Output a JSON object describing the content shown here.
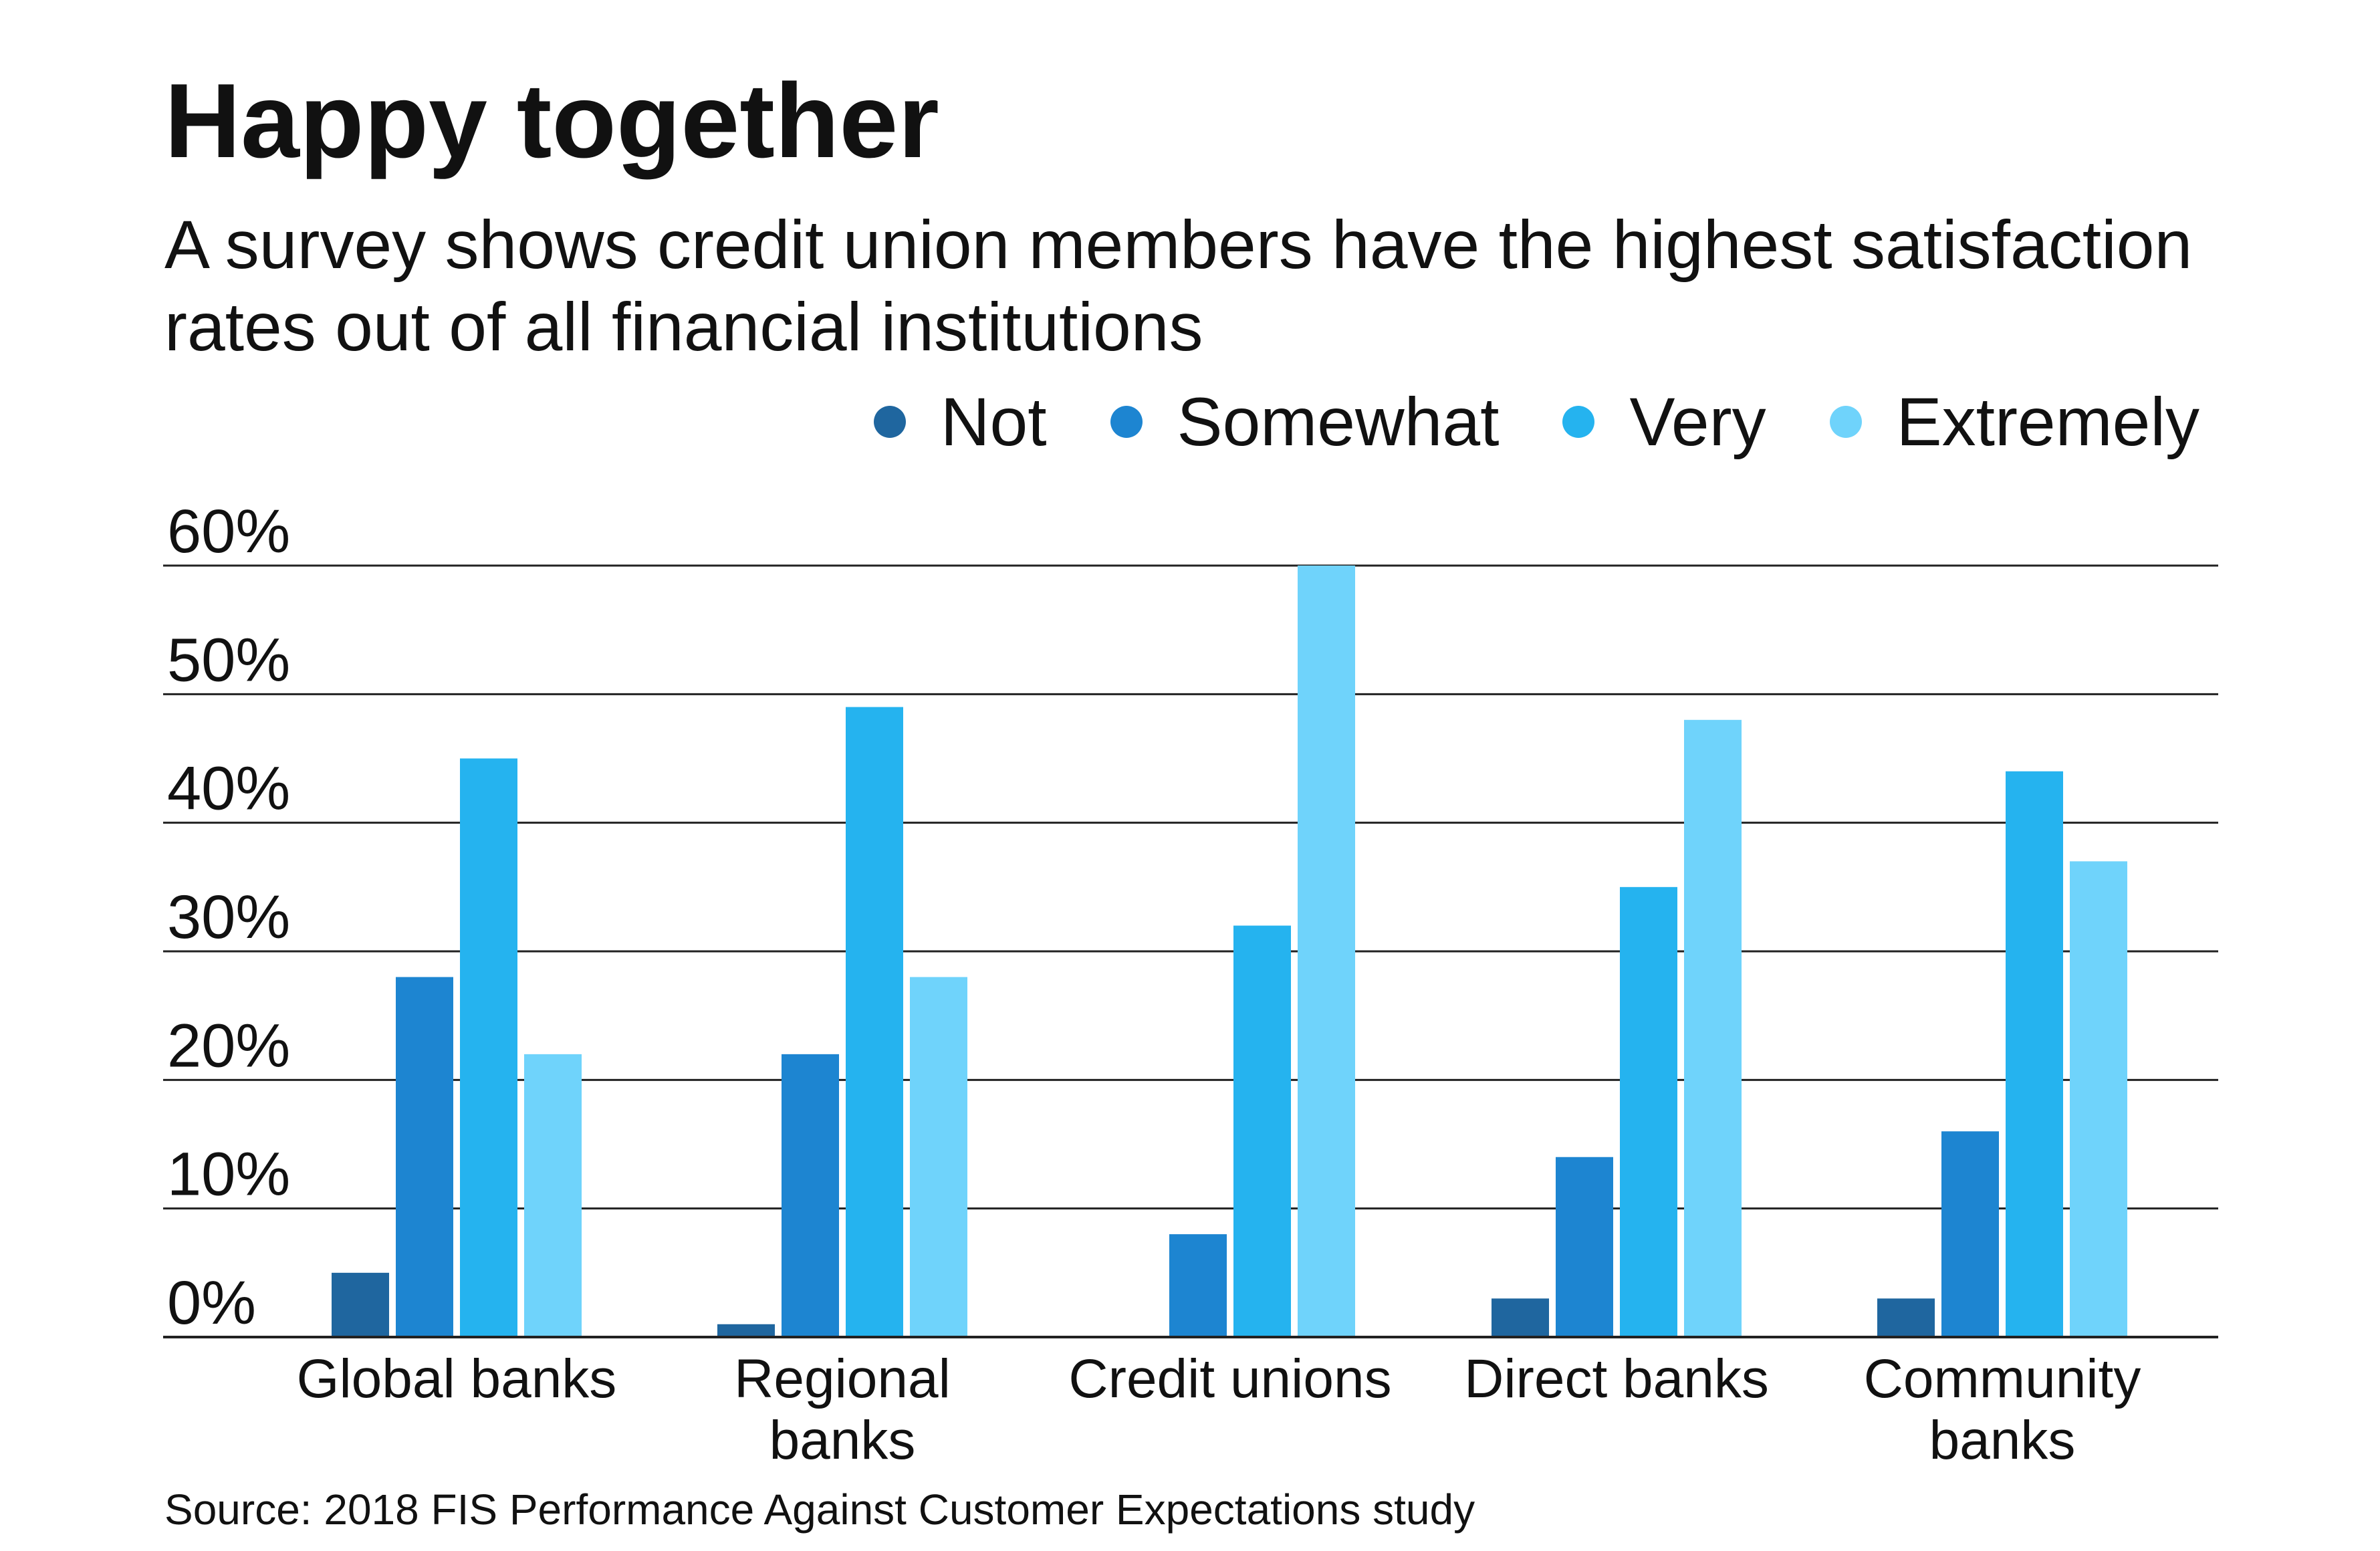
{
  "title": "Happy together",
  "subtitle": "A survey shows credit union members have the highest satisfaction rates out of all financial institutions",
  "source": "Source: 2018 FIS Performance Against Customer Expectations study",
  "chart_data": {
    "type": "bar",
    "title": "Happy together",
    "subtitle": "A survey shows credit union members have the highest satisfaction rates out of all financial institutions",
    "xlabel": "",
    "ylabel": "",
    "ylim": [
      0,
      60
    ],
    "y_ticks": [
      "0%",
      "10%",
      "20%",
      "30%",
      "40%",
      "50%",
      "60%"
    ],
    "grid": true,
    "legend_position": "top-right",
    "categories": [
      [
        "Global banks"
      ],
      [
        "Regional",
        "banks"
      ],
      [
        "Credit unions"
      ],
      [
        "Direct banks"
      ],
      [
        "Community",
        "banks"
      ]
    ],
    "series": [
      {
        "name": "Not",
        "color": "#1f669f",
        "values": [
          5,
          1,
          null,
          3,
          3
        ]
      },
      {
        "name": "Somewhat",
        "color": "#1d85d1",
        "values": [
          28,
          22,
          8,
          14,
          16
        ]
      },
      {
        "name": "Very",
        "color": "#25b3ef",
        "values": [
          45,
          49,
          32,
          35,
          44
        ]
      },
      {
        "name": "Extremely",
        "color": "#6fd3fb",
        "values": [
          22,
          28,
          60,
          48,
          37
        ]
      }
    ]
  }
}
